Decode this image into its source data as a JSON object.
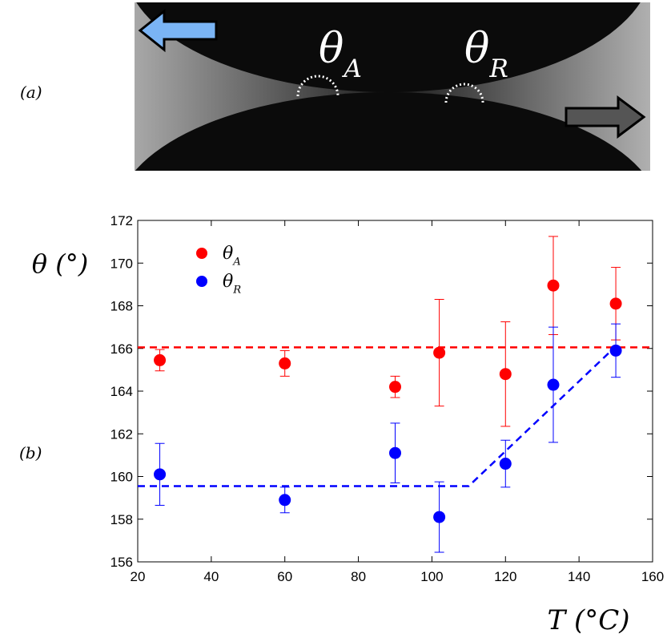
{
  "panel_labels": [
    "(a)",
    "(b)"
  ],
  "photo_labels": [
    "θA",
    "θR"
  ],
  "chart_data": {
    "type": "scatter",
    "xlabel": "T (°C)",
    "ylabel": "θ (°)",
    "x": [
      26,
      60,
      90,
      102,
      120,
      133,
      150
    ],
    "series": [
      {
        "name": "θA",
        "color": "#ff0000",
        "values": [
          165.45,
          165.3,
          164.2,
          165.8,
          164.8,
          168.95,
          168.1
        ],
        "errors": [
          0.5,
          0.6,
          0.5,
          2.5,
          2.45,
          2.3,
          1.7
        ]
      },
      {
        "name": "θR",
        "color": "#0000ff",
        "values": [
          160.1,
          158.9,
          161.1,
          158.1,
          160.6,
          164.3,
          165.9
        ],
        "errors": [
          1.45,
          0.6,
          1.4,
          1.65,
          1.1,
          2.7,
          1.25
        ]
      }
    ],
    "fit_lines": [
      {
        "color": "#ff0000",
        "x": [
          20,
          160
        ],
        "y": [
          166.05,
          166.05
        ]
      },
      {
        "color": "#0000ff",
        "x": [
          20,
          110,
          150
        ],
        "y": [
          159.55,
          159.55,
          166.1
        ]
      }
    ],
    "xlim": [
      20,
      160
    ],
    "xticks": [
      20,
      40,
      60,
      80,
      100,
      120,
      140,
      160
    ],
    "ylim": [
      156,
      172
    ],
    "yticks": [
      156,
      158,
      160,
      162,
      164,
      166,
      168,
      170,
      172
    ],
    "legend": "upper left"
  }
}
